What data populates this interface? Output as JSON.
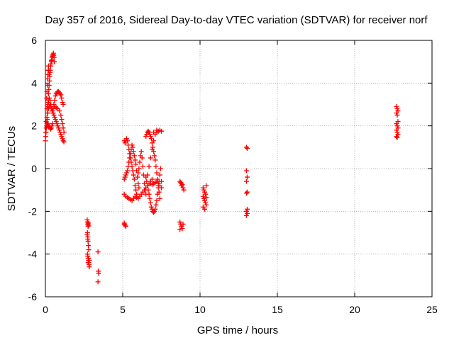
{
  "chart_data": {
    "type": "scatter",
    "title": "Day 357 of 2016, Sidereal Day-to-day VTEC variation (SDTVAR) for receiver norf",
    "xlabel": "GPS time / hours",
    "ylabel": "SDTVAR / TECUs",
    "xlim": [
      0,
      25
    ],
    "ylim": [
      -6,
      6
    ],
    "x_ticks": [
      0,
      5,
      10,
      15,
      20,
      25
    ],
    "y_ticks": [
      -6,
      -4,
      -2,
      0,
      2,
      4,
      6
    ],
    "grid": true,
    "marker": "+",
    "color": "#ff0000",
    "series": [
      {
        "name": "SDTVAR",
        "points": [
          [
            0.0,
            1.3
          ],
          [
            0.02,
            1.5
          ],
          [
            0.04,
            1.7
          ],
          [
            0.06,
            1.9
          ],
          [
            0.08,
            2.0
          ],
          [
            0.1,
            2.1
          ],
          [
            0.12,
            2.3
          ],
          [
            0.14,
            2.6
          ],
          [
            0.16,
            2.9
          ],
          [
            0.18,
            3.2
          ],
          [
            0.2,
            3.5
          ],
          [
            0.22,
            3.7
          ],
          [
            0.24,
            3.9
          ],
          [
            0.26,
            4.1
          ],
          [
            0.28,
            4.3
          ],
          [
            0.3,
            4.5
          ],
          [
            0.32,
            4.6
          ],
          [
            0.34,
            4.8
          ],
          [
            0.36,
            4.9
          ],
          [
            0.38,
            5.0
          ],
          [
            0.4,
            5.05
          ],
          [
            0.42,
            5.1
          ],
          [
            0.44,
            5.2
          ],
          [
            0.46,
            5.25
          ],
          [
            0.48,
            5.3
          ],
          [
            0.5,
            5.35
          ],
          [
            0.52,
            5.4
          ],
          [
            0.54,
            5.3
          ],
          [
            0.56,
            5.2
          ],
          [
            0.58,
            5.0
          ],
          [
            0.08,
            3.3
          ],
          [
            0.1,
            3.6
          ],
          [
            0.12,
            3.9
          ],
          [
            0.14,
            4.2
          ],
          [
            0.16,
            4.4
          ],
          [
            0.18,
            4.6
          ],
          [
            0.2,
            4.8
          ],
          [
            0.22,
            4.6
          ],
          [
            0.24,
            4.4
          ],
          [
            0.1,
            2.8
          ],
          [
            0.15,
            3.0
          ],
          [
            0.2,
            3.1
          ],
          [
            0.25,
            3.3
          ],
          [
            0.3,
            3.2
          ],
          [
            0.35,
            3.0
          ],
          [
            0.4,
            2.8
          ],
          [
            0.45,
            2.7
          ],
          [
            0.5,
            2.6
          ],
          [
            0.02,
            1.7
          ],
          [
            0.06,
            1.9
          ],
          [
            0.1,
            2.0
          ],
          [
            0.14,
            2.1
          ],
          [
            0.18,
            2.1
          ],
          [
            0.22,
            2.0
          ],
          [
            0.26,
            1.95
          ],
          [
            0.3,
            1.9
          ],
          [
            0.34,
            1.85
          ],
          [
            0.38,
            1.9
          ],
          [
            0.42,
            2.0
          ],
          [
            0.46,
            2.1
          ],
          [
            0.05,
            2.2
          ],
          [
            0.1,
            2.4
          ],
          [
            0.15,
            2.6
          ],
          [
            0.2,
            2.8
          ],
          [
            0.25,
            2.9
          ],
          [
            0.3,
            3.0
          ],
          [
            0.35,
            2.9
          ],
          [
            0.4,
            2.8
          ],
          [
            0.45,
            2.7
          ],
          [
            0.5,
            2.6
          ],
          [
            0.55,
            2.5
          ],
          [
            0.6,
            2.4
          ],
          [
            0.65,
            2.3
          ],
          [
            0.7,
            2.2
          ],
          [
            0.75,
            2.1
          ],
          [
            0.8,
            2.0
          ],
          [
            0.85,
            1.9
          ],
          [
            0.9,
            1.8
          ],
          [
            0.95,
            1.7
          ],
          [
            1.0,
            1.6
          ],
          [
            1.05,
            1.5
          ],
          [
            1.1,
            1.4
          ],
          [
            1.15,
            1.3
          ],
          [
            1.2,
            1.25
          ],
          [
            0.5,
            2.8
          ],
          [
            0.55,
            3.0
          ],
          [
            0.6,
            3.2
          ],
          [
            0.65,
            3.4
          ],
          [
            0.7,
            3.5
          ],
          [
            0.75,
            3.55
          ],
          [
            0.8,
            3.6
          ],
          [
            0.85,
            3.6
          ],
          [
            0.9,
            3.55
          ],
          [
            0.95,
            3.5
          ],
          [
            1.0,
            3.45
          ],
          [
            1.05,
            3.3
          ],
          [
            1.1,
            3.1
          ],
          [
            1.15,
            3.0
          ],
          [
            0.6,
            2.9
          ],
          [
            0.7,
            2.85
          ],
          [
            0.8,
            2.8
          ],
          [
            0.9,
            2.7
          ],
          [
            1.0,
            2.5
          ],
          [
            1.05,
            2.3
          ],
          [
            1.1,
            2.1
          ],
          [
            1.15,
            1.9
          ],
          [
            1.2,
            1.7
          ],
          [
            2.7,
            -2.4
          ],
          [
            2.72,
            -2.5
          ],
          [
            2.74,
            -2.6
          ],
          [
            2.76,
            -2.7
          ],
          [
            2.78,
            -2.55
          ],
          [
            2.8,
            -2.65
          ],
          [
            2.72,
            -3.0
          ],
          [
            2.74,
            -3.2
          ],
          [
            2.76,
            -3.4
          ],
          [
            2.78,
            -3.6
          ],
          [
            2.8,
            -3.8
          ],
          [
            2.7,
            -3.1
          ],
          [
            2.74,
            -3.3
          ],
          [
            2.72,
            -4.0
          ],
          [
            2.74,
            -4.1
          ],
          [
            2.76,
            -4.2
          ],
          [
            2.78,
            -4.3
          ],
          [
            2.8,
            -4.4
          ],
          [
            2.82,
            -4.5
          ],
          [
            2.84,
            -4.6
          ],
          [
            2.76,
            -4.4
          ],
          [
            2.8,
            -4.2
          ],
          [
            2.84,
            -4.3
          ],
          [
            3.4,
            -3.9
          ],
          [
            3.42,
            -4.8
          ],
          [
            3.44,
            -4.9
          ],
          [
            3.4,
            -5.3
          ],
          [
            5.1,
            1.3
          ],
          [
            5.15,
            1.2
          ],
          [
            5.2,
            1.3
          ],
          [
            5.25,
            1.4
          ],
          [
            5.3,
            1.3
          ],
          [
            5.35,
            1.1
          ],
          [
            5.4,
            0.9
          ],
          [
            5.45,
            0.7
          ],
          [
            5.5,
            0.5
          ],
          [
            5.55,
            0.3
          ],
          [
            5.6,
            0.1
          ],
          [
            5.65,
            -0.1
          ],
          [
            5.7,
            -0.3
          ],
          [
            5.75,
            -0.5
          ],
          [
            5.8,
            -0.8
          ],
          [
            5.85,
            -1.0
          ],
          [
            5.9,
            -1.2
          ],
          [
            5.1,
            -0.5
          ],
          [
            5.15,
            -0.4
          ],
          [
            5.2,
            -0.3
          ],
          [
            5.25,
            -0.2
          ],
          [
            5.3,
            -0.1
          ],
          [
            5.35,
            0.1
          ],
          [
            5.4,
            0.3
          ],
          [
            5.45,
            0.5
          ],
          [
            5.5,
            0.7
          ],
          [
            5.55,
            0.9
          ],
          [
            5.6,
            1.1
          ],
          [
            5.65,
            1.0
          ],
          [
            5.7,
            0.8
          ],
          [
            5.75,
            0.6
          ],
          [
            5.8,
            0.4
          ],
          [
            5.85,
            0.2
          ],
          [
            5.9,
            -0.1
          ],
          [
            5.95,
            -0.4
          ],
          [
            6.0,
            -0.7
          ],
          [
            6.05,
            -0.9
          ],
          [
            5.1,
            -1.2
          ],
          [
            5.2,
            -1.3
          ],
          [
            5.3,
            -1.35
          ],
          [
            5.4,
            -1.4
          ],
          [
            5.5,
            -1.45
          ],
          [
            5.6,
            -1.5
          ],
          [
            5.7,
            -1.4
          ],
          [
            5.8,
            -1.3
          ],
          [
            5.9,
            -1.35
          ],
          [
            6.0,
            -1.4
          ],
          [
            6.1,
            -1.3
          ],
          [
            6.2,
            -1.2
          ],
          [
            6.3,
            -1.1
          ],
          [
            6.4,
            -1.0
          ],
          [
            6.5,
            -0.9
          ],
          [
            6.6,
            -0.8
          ],
          [
            6.7,
            -0.7
          ],
          [
            6.8,
            -0.6
          ],
          [
            6.9,
            -0.5
          ],
          [
            6.0,
            -0.2
          ],
          [
            6.05,
            0.0
          ],
          [
            6.1,
            0.3
          ],
          [
            6.15,
            0.6
          ],
          [
            6.2,
            0.8
          ],
          [
            6.25,
            0.5
          ],
          [
            6.3,
            0.1
          ],
          [
            6.35,
            -0.3
          ],
          [
            6.4,
            -0.7
          ],
          [
            6.45,
            -1.0
          ],
          [
            6.5,
            -1.2
          ],
          [
            6.5,
            1.5
          ],
          [
            6.55,
            1.6
          ],
          [
            6.6,
            1.7
          ],
          [
            6.65,
            1.75
          ],
          [
            6.7,
            1.7
          ],
          [
            6.75,
            1.6
          ],
          [
            6.8,
            1.5
          ],
          [
            6.85,
            1.4
          ],
          [
            6.9,
            1.2
          ],
          [
            6.95,
            1.0
          ],
          [
            7.0,
            0.8
          ],
          [
            7.05,
            0.6
          ],
          [
            7.1,
            0.4
          ],
          [
            7.15,
            0.1
          ],
          [
            7.2,
            -0.2
          ],
          [
            7.25,
            -0.5
          ],
          [
            7.3,
            -0.8
          ],
          [
            7.35,
            -1.1
          ],
          [
            7.4,
            -1.4
          ],
          [
            6.5,
            -0.4
          ],
          [
            6.55,
            -0.6
          ],
          [
            6.6,
            -0.8
          ],
          [
            6.65,
            -1.0
          ],
          [
            6.7,
            -1.2
          ],
          [
            6.75,
            -1.4
          ],
          [
            6.8,
            -1.6
          ],
          [
            6.85,
            -1.8
          ],
          [
            6.9,
            -1.9
          ],
          [
            6.95,
            -2.0
          ],
          [
            7.0,
            -2.05
          ],
          [
            7.05,
            -2.0
          ],
          [
            7.1,
            -1.9
          ],
          [
            7.15,
            -1.7
          ],
          [
            7.2,
            -1.5
          ],
          [
            7.25,
            -1.2
          ],
          [
            7.3,
            -0.9
          ],
          [
            7.35,
            -0.6
          ],
          [
            7.4,
            -0.3
          ],
          [
            7.45,
            0.0
          ],
          [
            7.5,
            -0.6
          ],
          [
            6.6,
            -0.3
          ],
          [
            6.7,
            0.1
          ],
          [
            6.8,
            0.5
          ],
          [
            6.9,
            0.9
          ],
          [
            7.0,
            1.3
          ],
          [
            7.1,
            1.6
          ],
          [
            7.2,
            1.7
          ],
          [
            7.3,
            1.75
          ],
          [
            7.4,
            1.8
          ],
          [
            7.5,
            1.75
          ],
          [
            7.2,
            1.8
          ],
          [
            7.0,
            1.7
          ],
          [
            6.8,
            -0.7
          ],
          [
            6.9,
            -0.75
          ],
          [
            7.0,
            -0.7
          ],
          [
            7.1,
            -0.65
          ],
          [
            7.2,
            -0.6
          ],
          [
            7.3,
            -0.7
          ],
          [
            7.4,
            -0.8
          ],
          [
            7.5,
            -0.9
          ],
          [
            5.1,
            -2.6
          ],
          [
            5.15,
            -2.65
          ],
          [
            5.2,
            -2.7
          ],
          [
            5.1,
            -2.55
          ],
          [
            8.7,
            -0.6
          ],
          [
            8.75,
            -0.65
          ],
          [
            8.8,
            -0.7
          ],
          [
            8.85,
            -0.75
          ],
          [
            8.9,
            -0.9
          ],
          [
            8.95,
            -1.0
          ],
          [
            8.8,
            -0.8
          ],
          [
            8.7,
            -2.5
          ],
          [
            8.75,
            -2.6
          ],
          [
            8.8,
            -2.7
          ],
          [
            8.85,
            -2.8
          ],
          [
            8.7,
            -2.85
          ],
          [
            8.9,
            -2.6
          ],
          [
            10.2,
            -0.9
          ],
          [
            10.25,
            -1.0
          ],
          [
            10.3,
            -1.1
          ],
          [
            10.35,
            -1.2
          ],
          [
            10.4,
            -0.8
          ],
          [
            10.2,
            -1.3
          ],
          [
            10.25,
            -1.4
          ],
          [
            10.3,
            -1.5
          ],
          [
            10.35,
            -1.6
          ],
          [
            10.4,
            -1.7
          ],
          [
            10.2,
            -1.8
          ],
          [
            10.3,
            -1.9
          ],
          [
            10.4,
            -1.35
          ],
          [
            13.0,
            1.0
          ],
          [
            13.05,
            0.95
          ],
          [
            13.0,
            -0.1
          ],
          [
            13.05,
            -0.4
          ],
          [
            13.0,
            -0.6
          ],
          [
            13.05,
            -1.1
          ],
          [
            13.0,
            -1.15
          ],
          [
            13.05,
            -1.9
          ],
          [
            13.0,
            -2.0
          ],
          [
            13.05,
            -2.1
          ],
          [
            13.0,
            -2.2
          ],
          [
            22.7,
            2.9
          ],
          [
            22.75,
            2.8
          ],
          [
            22.8,
            2.7
          ],
          [
            22.7,
            2.6
          ],
          [
            22.75,
            2.5
          ],
          [
            22.8,
            2.2
          ],
          [
            22.7,
            2.1
          ],
          [
            22.75,
            2.0
          ],
          [
            22.8,
            1.9
          ],
          [
            22.7,
            1.8
          ],
          [
            22.75,
            1.7
          ],
          [
            22.8,
            1.6
          ],
          [
            22.7,
            1.5
          ],
          [
            22.75,
            1.45
          ]
        ]
      }
    ]
  }
}
